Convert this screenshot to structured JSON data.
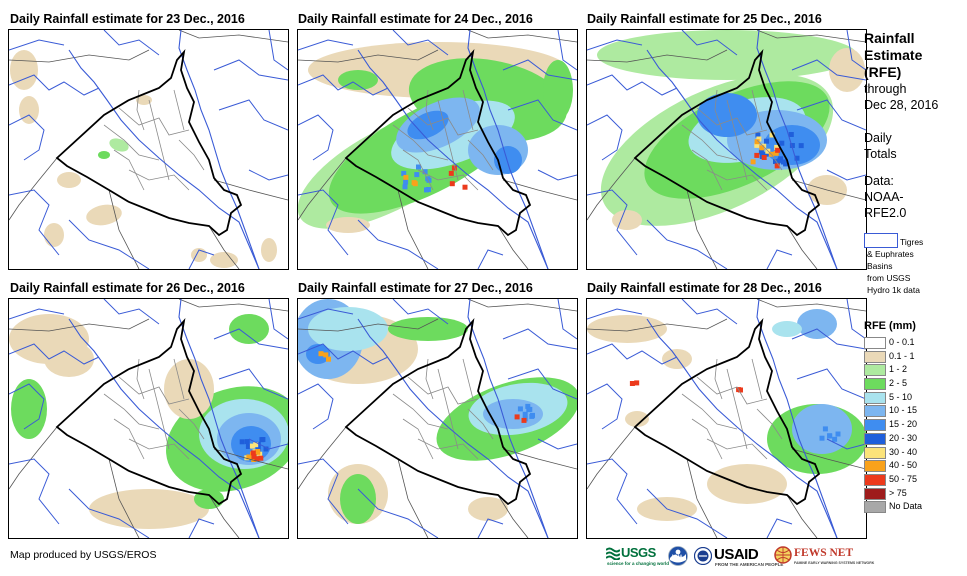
{
  "panels": [
    {
      "title": "Daily Rainfall estimate for 23 Dec., 2016"
    },
    {
      "title": "Daily Rainfall estimate for 24 Dec., 2016"
    },
    {
      "title": "Daily Rainfall estimate for 25 Dec., 2016"
    },
    {
      "title": "Daily Rainfall estimate for 26 Dec., 2016"
    },
    {
      "title": "Daily Rainfall estimate for 27 Dec., 2016"
    },
    {
      "title": "Daily Rainfall estimate for 28 Dec., 2016"
    }
  ],
  "sidebar": {
    "title_lines": [
      "Rainfall",
      "Estimate",
      "(RFE)"
    ],
    "through_lines": [
      "through",
      "Dec 28, 2016"
    ],
    "daily_lines": [
      "Daily",
      "Totals"
    ],
    "data_lines": [
      "Data:",
      "NOAA-",
      "RFE2.0"
    ],
    "basin_lines": [
      "Tigres",
      "& Euphrates",
      "Basins",
      "from USGS",
      "Hydro 1k data"
    ]
  },
  "legend": {
    "title": "RFE (mm)",
    "items": [
      {
        "label": "0 - 0.1",
        "color": "#ffffff"
      },
      {
        "label": "0.1 - 1",
        "color": "#ead9b8"
      },
      {
        "label": "1 - 2",
        "color": "#aeeaa0"
      },
      {
        "label": "2 - 5",
        "color": "#6ddb5e"
      },
      {
        "label": "5 - 10",
        "color": "#a9e3ee"
      },
      {
        "label": "10 - 15",
        "color": "#7db6f0"
      },
      {
        "label": "15 - 20",
        "color": "#3f8df0"
      },
      {
        "label": "20 - 30",
        "color": "#1f5fdb"
      },
      {
        "label": "30 - 40",
        "color": "#fbe37a"
      },
      {
        "label": "40 - 50",
        "color": "#f9a21b"
      },
      {
        "label": "50 - 75",
        "color": "#ec3a1c"
      },
      {
        "label": "> 75",
        "color": "#9e1c1c"
      },
      {
        "label": "No Data",
        "color": "#a8a8a8"
      }
    ]
  },
  "footer": {
    "credit": "Map produced by USGS/EROS"
  },
  "logos": {
    "usgs": "USGS",
    "usgs_tagline": "science for a changing world",
    "noaa": "NOAA",
    "usaid": "USAID",
    "usaid_tagline": "FROM THE AMERICAN PEOPLE",
    "fewsnet": "FEWS NET",
    "fewsnet_tagline": "FAMINE EARLY WARNING SYSTEMS NETWORK"
  }
}
